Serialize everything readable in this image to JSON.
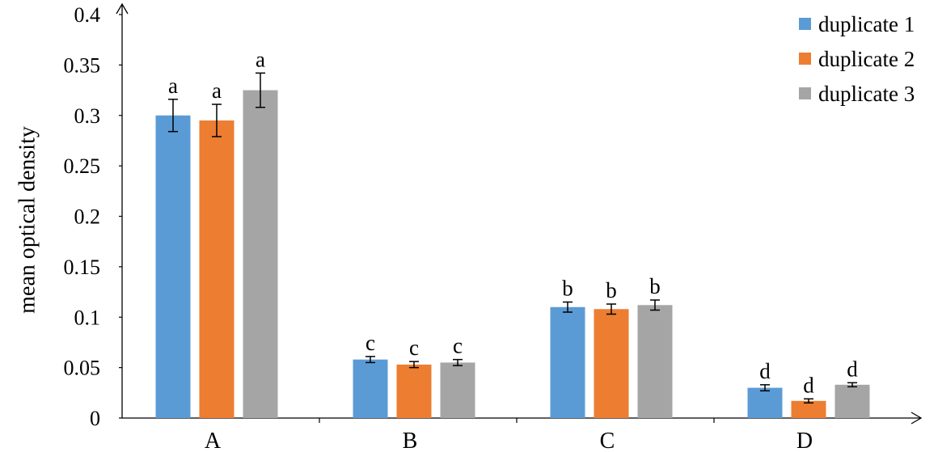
{
  "chart_data": {
    "type": "bar",
    "title": "",
    "xlabel": "",
    "ylabel": "mean optical density",
    "ylim": [
      0,
      0.4
    ],
    "yticks": [
      0,
      0.05,
      0.1,
      0.15,
      0.2,
      0.25,
      0.3,
      0.35,
      0.4
    ],
    "ytick_labels": [
      "0",
      "0.05",
      "0.1",
      "0.15",
      "0.2",
      "0.25",
      "0.3",
      "0.35",
      "0.4"
    ],
    "categories": [
      "A",
      "B",
      "C",
      "D"
    ],
    "legend_position": "top-right",
    "grid": false,
    "series": [
      {
        "name": "duplicate 1",
        "color": "#5b9bd5",
        "values": [
          0.3,
          0.058,
          0.11,
          0.03
        ],
        "errors": [
          0.016,
          0.003,
          0.005,
          0.003
        ],
        "letters": [
          "a",
          "c",
          "b",
          "d"
        ]
      },
      {
        "name": "duplicate 2",
        "color": "#ed7d31",
        "values": [
          0.295,
          0.053,
          0.108,
          0.017
        ],
        "errors": [
          0.016,
          0.003,
          0.005,
          0.002
        ],
        "letters": [
          "a",
          "c",
          "b",
          "d"
        ]
      },
      {
        "name": "duplicate 3",
        "color": "#a5a5a5",
        "values": [
          0.325,
          0.055,
          0.112,
          0.033
        ],
        "errors": [
          0.017,
          0.003,
          0.005,
          0.002
        ],
        "letters": [
          "a",
          "c",
          "b",
          "d"
        ]
      }
    ]
  }
}
